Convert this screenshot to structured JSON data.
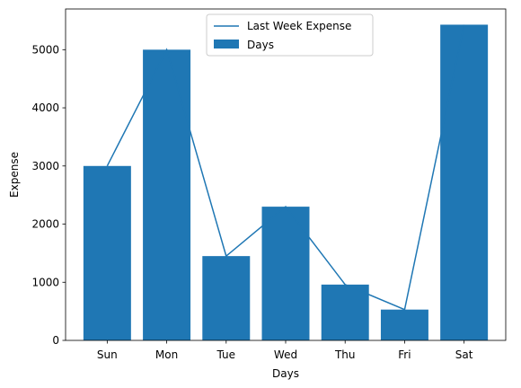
{
  "chart_data": {
    "type": "bar",
    "categories": [
      "Sun",
      "Mon",
      "Tue",
      "Wed",
      "Thu",
      "Fri",
      "Sat"
    ],
    "series": [
      {
        "name": "Days",
        "type": "bar",
        "values": [
          3000,
          5000,
          1450,
          2300,
          960,
          530,
          5430
        ]
      },
      {
        "name": "Last Week Expense",
        "type": "line",
        "values": [
          3000,
          5000,
          1450,
          2300,
          960,
          530,
          5430
        ]
      }
    ],
    "xlabel": "Days",
    "ylabel": "Expense",
    "ylim": [
      0,
      5700
    ],
    "yticks": [
      0,
      1000,
      2000,
      3000,
      4000,
      5000
    ],
    "grid": false,
    "legend_position": "top-center",
    "colors": {
      "bar": "#1f77b4",
      "line": "#1f77b4"
    }
  }
}
